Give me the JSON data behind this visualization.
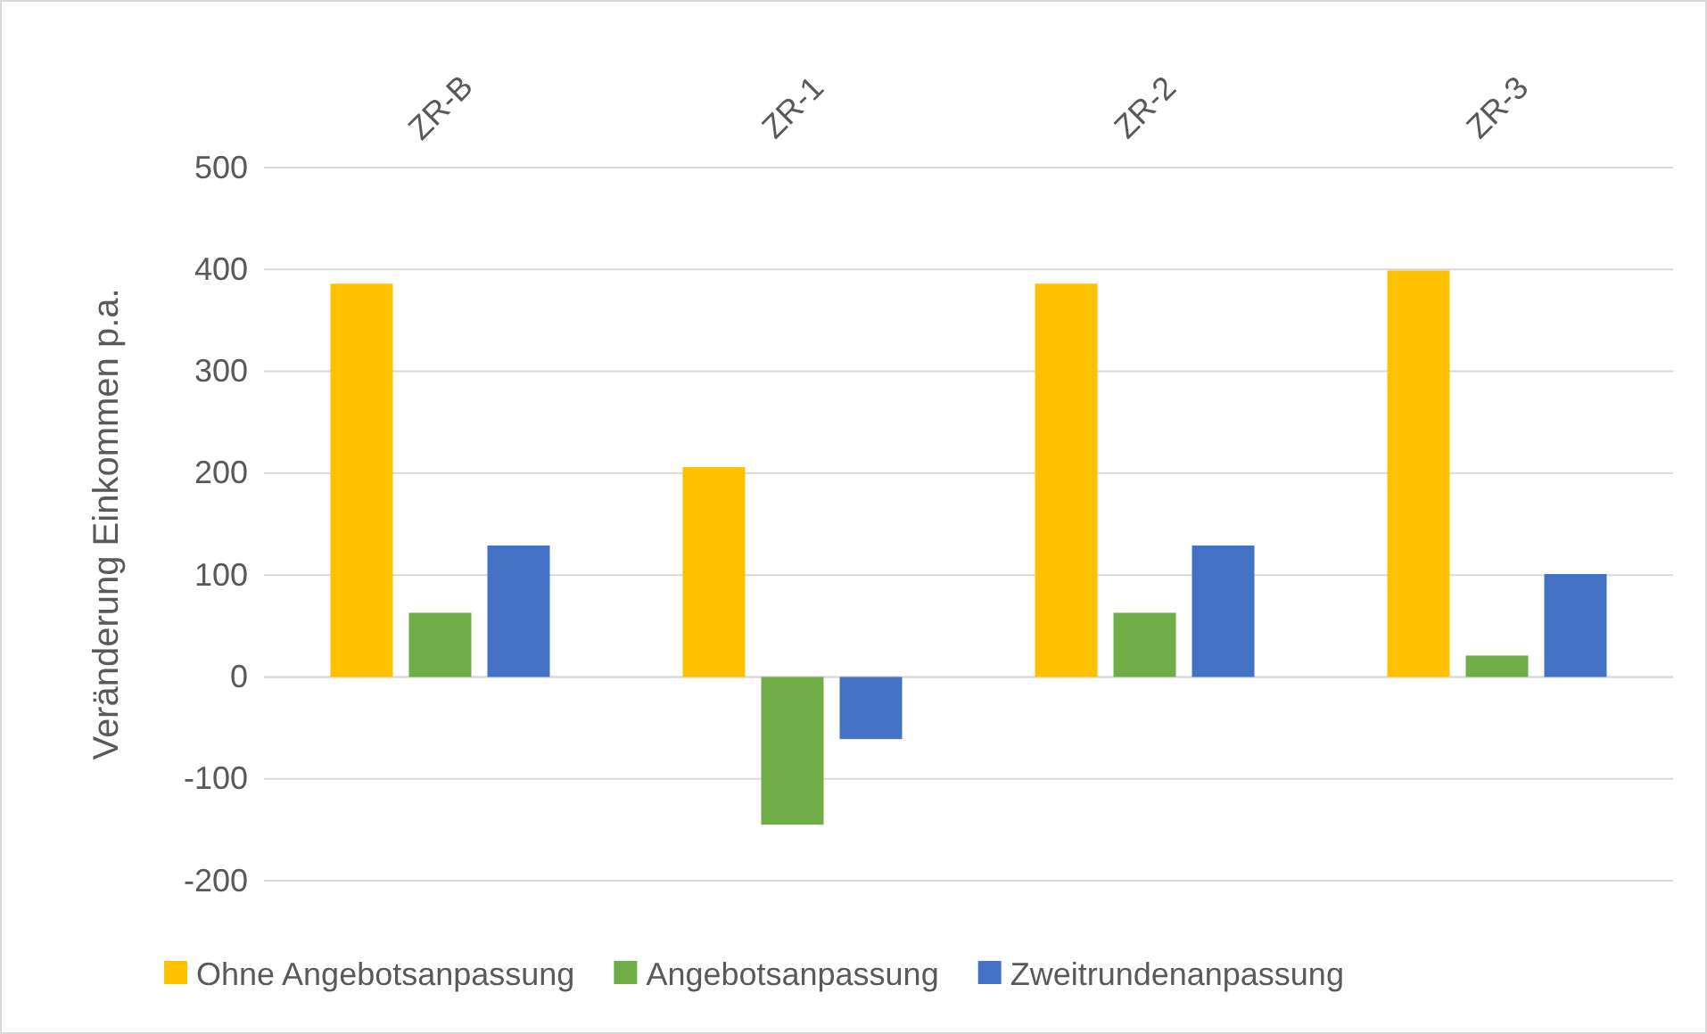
{
  "chart_data": {
    "type": "bar",
    "ylabel": "Veränderung Einkommen p.a.",
    "categories": [
      "ZR-B",
      "ZR-1",
      "ZR-2",
      "ZR-3"
    ],
    "series": [
      {
        "name": "Ohne Angebotsanpassung",
        "color": "#ffc000",
        "values": [
          386,
          206,
          386,
          399
        ]
      },
      {
        "name": "Angebotsanpassung",
        "color": "#70ad47",
        "values": [
          63,
          -145,
          63,
          21
        ]
      },
      {
        "name": "Zweitrundenanpassung",
        "color": "#4472c4",
        "values": [
          129,
          -61,
          129,
          101
        ]
      }
    ],
    "ylim": [
      -200,
      500
    ],
    "yticks": [
      -200,
      -100,
      0,
      100,
      200,
      300,
      400,
      500
    ],
    "grid": "y",
    "legend": "bottom"
  }
}
